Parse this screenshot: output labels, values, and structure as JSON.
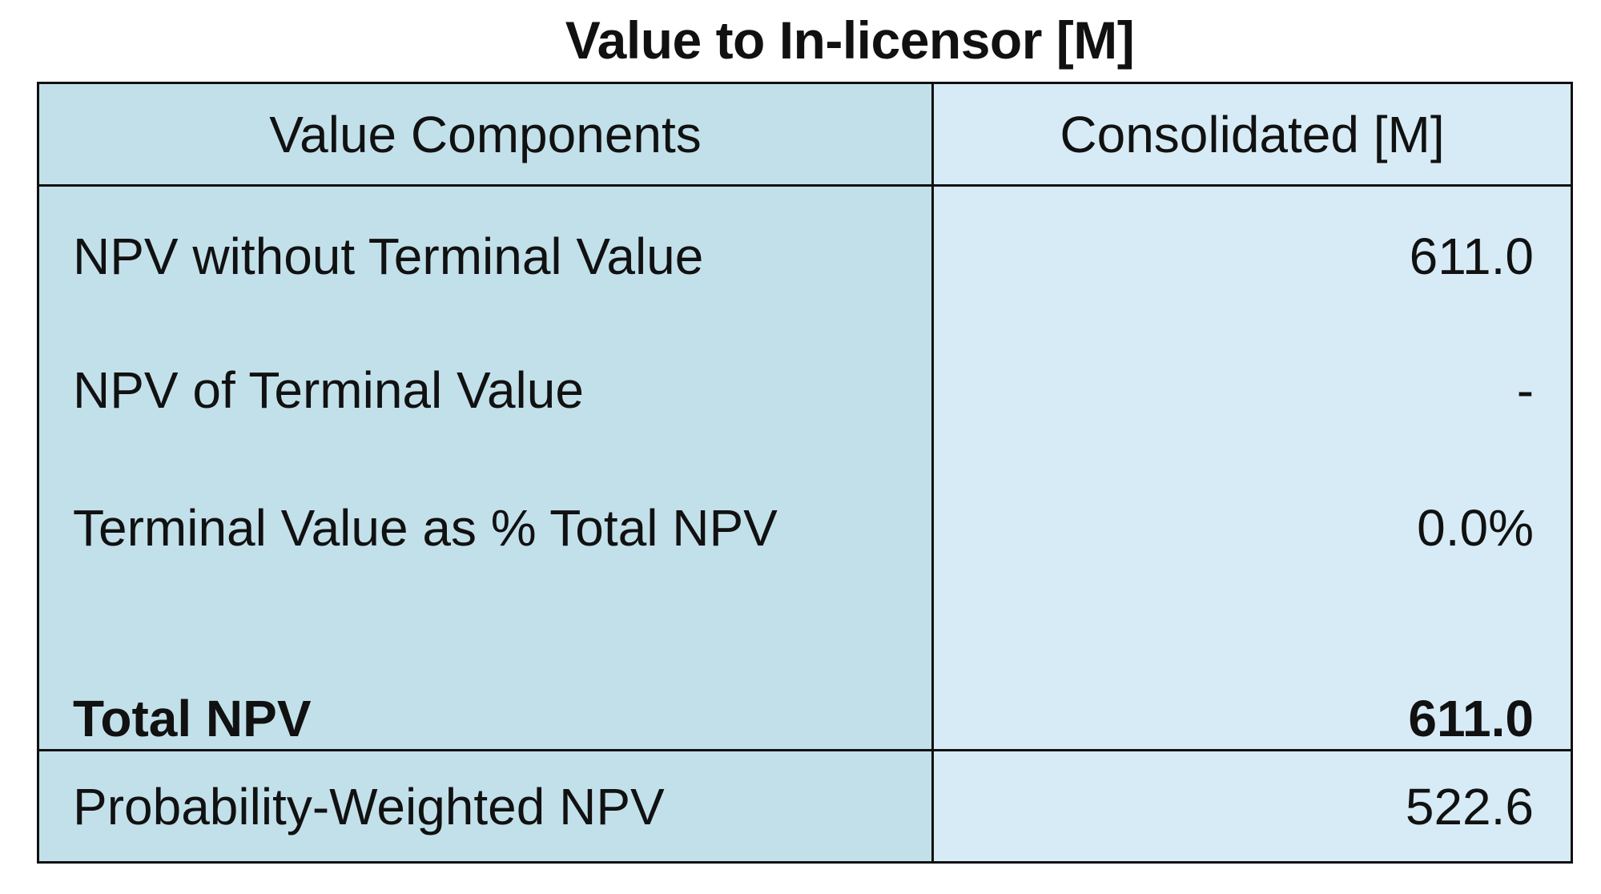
{
  "title": "Value to In-licensor [M]",
  "table": {
    "headers": [
      "Value Components",
      "Consolidated [M]"
    ],
    "rows": [
      {
        "label": "NPV without Terminal Value",
        "value": "611.0"
      },
      {
        "label": "NPV of Terminal Value",
        "value": "-"
      },
      {
        "label": "Terminal Value as % Total NPV",
        "value": "0.0%"
      },
      {
        "label": "Total NPV",
        "value": "611.0"
      }
    ],
    "footer": {
      "label": "Probability-Weighted NPV",
      "value": "522.6"
    }
  },
  "colors": {
    "left_column_bg": "#c2e0ea",
    "right_column_bg": "#d6ebf5",
    "border": "#111111"
  }
}
